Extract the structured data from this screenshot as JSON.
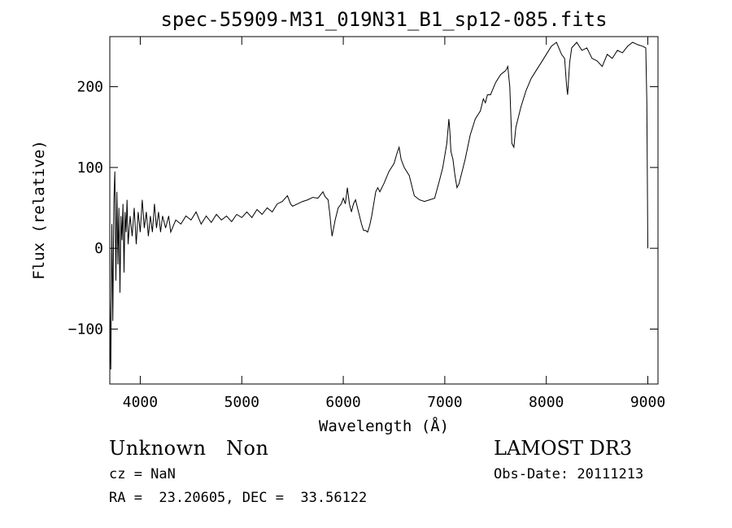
{
  "chart_data": {
    "type": "line",
    "title": "spec-55909-M31_019N31_B1_sp12-085.fits",
    "xlabel": "Wavelength (Å)",
    "ylabel": "Flux (relative)",
    "xlim": [
      3700,
      9100
    ],
    "ylim": [
      -168,
      262
    ],
    "xticks": [
      4000,
      5000,
      6000,
      7000,
      8000,
      9000
    ],
    "yticks": [
      -100,
      0,
      100,
      200
    ],
    "grid": false,
    "series": [
      {
        "values": [
          [
            3700,
            -60
          ],
          [
            3710,
            -150
          ],
          [
            3720,
            30
          ],
          [
            3730,
            -90
          ],
          [
            3740,
            60
          ],
          [
            3750,
            95
          ],
          [
            3760,
            -40
          ],
          [
            3770,
            70
          ],
          [
            3780,
            -20
          ],
          [
            3790,
            50
          ],
          [
            3800,
            -55
          ],
          [
            3810,
            40
          ],
          [
            3820,
            10
          ],
          [
            3830,
            55
          ],
          [
            3840,
            -30
          ],
          [
            3850,
            45
          ],
          [
            3860,
            20
          ],
          [
            3870,
            60
          ],
          [
            3880,
            5
          ],
          [
            3900,
            40
          ],
          [
            3920,
            15
          ],
          [
            3940,
            50
          ],
          [
            3960,
            5
          ],
          [
            3980,
            45
          ],
          [
            4000,
            20
          ],
          [
            4020,
            60
          ],
          [
            4040,
            25
          ],
          [
            4060,
            45
          ],
          [
            4080,
            15
          ],
          [
            4100,
            40
          ],
          [
            4120,
            20
          ],
          [
            4140,
            55
          ],
          [
            4160,
            25
          ],
          [
            4180,
            45
          ],
          [
            4200,
            20
          ],
          [
            4220,
            40
          ],
          [
            4250,
            25
          ],
          [
            4280,
            40
          ],
          [
            4300,
            20
          ],
          [
            4350,
            35
          ],
          [
            4400,
            30
          ],
          [
            4450,
            40
          ],
          [
            4500,
            35
          ],
          [
            4550,
            45
          ],
          [
            4600,
            30
          ],
          [
            4650,
            40
          ],
          [
            4700,
            32
          ],
          [
            4750,
            42
          ],
          [
            4800,
            35
          ],
          [
            4850,
            40
          ],
          [
            4900,
            33
          ],
          [
            4950,
            42
          ],
          [
            5000,
            38
          ],
          [
            5050,
            45
          ],
          [
            5100,
            38
          ],
          [
            5150,
            48
          ],
          [
            5200,
            42
          ],
          [
            5250,
            50
          ],
          [
            5300,
            45
          ],
          [
            5350,
            55
          ],
          [
            5400,
            58
          ],
          [
            5450,
            65
          ],
          [
            5480,
            55
          ],
          [
            5500,
            52
          ],
          [
            5550,
            55
          ],
          [
            5600,
            58
          ],
          [
            5650,
            60
          ],
          [
            5700,
            63
          ],
          [
            5750,
            62
          ],
          [
            5800,
            70
          ],
          [
            5820,
            64
          ],
          [
            5850,
            60
          ],
          [
            5870,
            40
          ],
          [
            5880,
            25
          ],
          [
            5890,
            15
          ],
          [
            5900,
            22
          ],
          [
            5920,
            35
          ],
          [
            5950,
            50
          ],
          [
            5980,
            55
          ],
          [
            6000,
            62
          ],
          [
            6020,
            55
          ],
          [
            6040,
            75
          ],
          [
            6060,
            55
          ],
          [
            6080,
            45
          ],
          [
            6100,
            55
          ],
          [
            6120,
            60
          ],
          [
            6150,
            45
          ],
          [
            6180,
            30
          ],
          [
            6200,
            22
          ],
          [
            6220,
            22
          ],
          [
            6240,
            20
          ],
          [
            6260,
            28
          ],
          [
            6280,
            40
          ],
          [
            6300,
            55
          ],
          [
            6320,
            70
          ],
          [
            6340,
            75
          ],
          [
            6360,
            70
          ],
          [
            6400,
            80
          ],
          [
            6450,
            95
          ],
          [
            6500,
            105
          ],
          [
            6530,
            118
          ],
          [
            6550,
            125
          ],
          [
            6570,
            110
          ],
          [
            6600,
            100
          ],
          [
            6650,
            90
          ],
          [
            6680,
            75
          ],
          [
            6700,
            65
          ],
          [
            6750,
            60
          ],
          [
            6800,
            58
          ],
          [
            6850,
            60
          ],
          [
            6900,
            62
          ],
          [
            6950,
            85
          ],
          [
            6980,
            100
          ],
          [
            7000,
            115
          ],
          [
            7020,
            130
          ],
          [
            7040,
            160
          ],
          [
            7050,
            145
          ],
          [
            7060,
            120
          ],
          [
            7080,
            110
          ],
          [
            7100,
            90
          ],
          [
            7120,
            75
          ],
          [
            7140,
            80
          ],
          [
            7160,
            90
          ],
          [
            7180,
            100
          ],
          [
            7200,
            110
          ],
          [
            7250,
            140
          ],
          [
            7300,
            160
          ],
          [
            7350,
            170
          ],
          [
            7380,
            185
          ],
          [
            7400,
            180
          ],
          [
            7420,
            190
          ],
          [
            7450,
            190
          ],
          [
            7500,
            205
          ],
          [
            7550,
            215
          ],
          [
            7600,
            220
          ],
          [
            7620,
            225
          ],
          [
            7640,
            200
          ],
          [
            7660,
            130
          ],
          [
            7680,
            125
          ],
          [
            7700,
            150
          ],
          [
            7750,
            175
          ],
          [
            7800,
            195
          ],
          [
            7850,
            210
          ],
          [
            7900,
            220
          ],
          [
            7950,
            230
          ],
          [
            8000,
            240
          ],
          [
            8050,
            250
          ],
          [
            8100,
            255
          ],
          [
            8150,
            240
          ],
          [
            8180,
            235
          ],
          [
            8200,
            200
          ],
          [
            8210,
            190
          ],
          [
            8230,
            230
          ],
          [
            8250,
            248
          ],
          [
            8300,
            255
          ],
          [
            8350,
            245
          ],
          [
            8400,
            248
          ],
          [
            8450,
            235
          ],
          [
            8500,
            232
          ],
          [
            8550,
            225
          ],
          [
            8600,
            240
          ],
          [
            8650,
            235
          ],
          [
            8700,
            245
          ],
          [
            8750,
            242
          ],
          [
            8800,
            250
          ],
          [
            8850,
            255
          ],
          [
            8900,
            252
          ],
          [
            8950,
            250
          ],
          [
            8980,
            248
          ],
          [
            8990,
            180
          ],
          [
            9000,
            0
          ]
        ]
      }
    ]
  },
  "info": {
    "class_line": "Unknown   Non",
    "cz_line": "cz = NaN",
    "radec_line": "RA =  23.20605, DEC =  33.56122",
    "survey": "LAMOST DR3",
    "obs_date": "Obs-Date: 20111213"
  }
}
